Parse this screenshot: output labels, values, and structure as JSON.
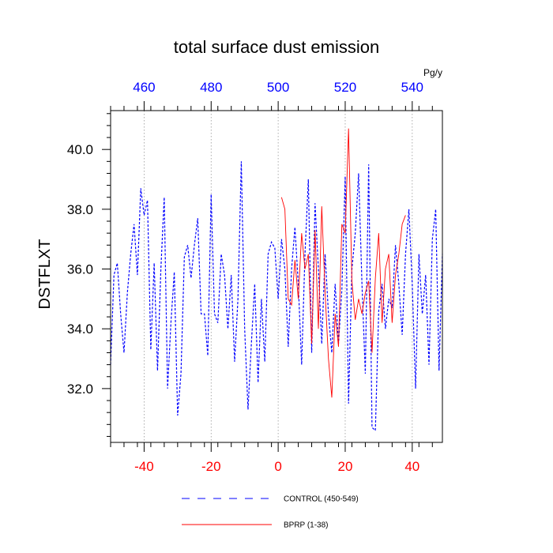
{
  "chart_data": {
    "type": "line",
    "title": "total surface dust emission",
    "ylabel": "DSTFLXT",
    "unit_label": "Pg/y",
    "xlim": [
      -50,
      49
    ],
    "ylim": [
      30.2,
      41.3
    ],
    "x_ticks": [
      -40,
      -20,
      0,
      20,
      40
    ],
    "x_tick_labels": [
      "-40",
      "-20",
      "0",
      "20",
      "40"
    ],
    "y_ticks": [
      32,
      34,
      36,
      38,
      40
    ],
    "y_tick_labels": [
      "32.0",
      "34.0",
      "36.0",
      "38.0",
      "40.0"
    ],
    "top_axis": {
      "ticks": [
        460,
        480,
        500,
        520,
        540
      ],
      "tick_labels": [
        "460",
        "480",
        "500",
        "520",
        "540"
      ],
      "offset": 500
    },
    "grid": "vertical-dotted",
    "colors": {
      "bottom_ticks": "#ff0000",
      "top_ticks": "#0000ff",
      "control": "#0000ff",
      "bprp": "#ff0000"
    },
    "series": [
      {
        "name": "CONTROL (450-549)",
        "style": "dashed",
        "color": "#0000ff",
        "x_start": -50,
        "values": [
          32.8,
          35.8,
          36.2,
          34.5,
          33.2,
          35.2,
          36.5,
          37.5,
          35.8,
          38.7,
          37.8,
          38.3,
          33.3,
          36.2,
          32.6,
          36.0,
          38.4,
          32.0,
          34.2,
          35.9,
          31.1,
          32.5,
          36.4,
          36.8,
          35.7,
          36.8,
          37.7,
          34.5,
          34.5,
          33.1,
          38.5,
          34.5,
          34.2,
          36.5,
          35.8,
          34.0,
          35.8,
          32.9,
          35.0,
          39.6,
          34.0,
          31.3,
          33.5,
          35.5,
          32.2,
          35.0,
          32.9,
          36.5,
          36.9,
          36.7,
          35.0,
          37.0,
          36.0,
          33.4,
          36.0,
          37.4,
          35.5,
          32.8,
          36.5,
          39.0,
          33.2,
          38.2,
          36.0,
          33.5,
          36.5,
          34.5,
          33.2,
          35.5,
          33.5,
          35.3,
          39.1,
          31.5,
          36.0,
          37.2,
          39.2,
          35.5,
          32.5,
          39.5,
          30.7,
          30.6,
          34.6,
          35.5,
          34.0,
          35.0,
          34.7,
          36.8,
          35.5,
          33.8,
          36.5,
          38.0,
          35.5,
          32.0,
          36.5,
          34.5,
          35.8,
          32.8,
          37.0,
          38.0,
          32.6,
          36.5
        ]
      },
      {
        "name": "BPRP (1-38)",
        "style": "solid",
        "color": "#ff0000",
        "x_start": 1,
        "values": [
          38.4,
          38.0,
          35.0,
          34.8,
          36.3,
          35.0,
          37.2,
          36.0,
          36.5,
          33.5,
          37.3,
          34.0,
          38.1,
          35.2,
          33.0,
          31.7,
          34.5,
          33.4,
          37.5,
          37.2,
          40.7,
          35.6,
          34.3,
          35.0,
          34.5,
          35.2,
          35.6,
          33.2,
          35.7,
          37.2,
          34.2,
          36.0,
          36.5,
          34.2,
          35.8,
          36.5,
          37.5,
          37.8
        ]
      }
    ],
    "legend": {
      "placement": "bottom"
    }
  }
}
